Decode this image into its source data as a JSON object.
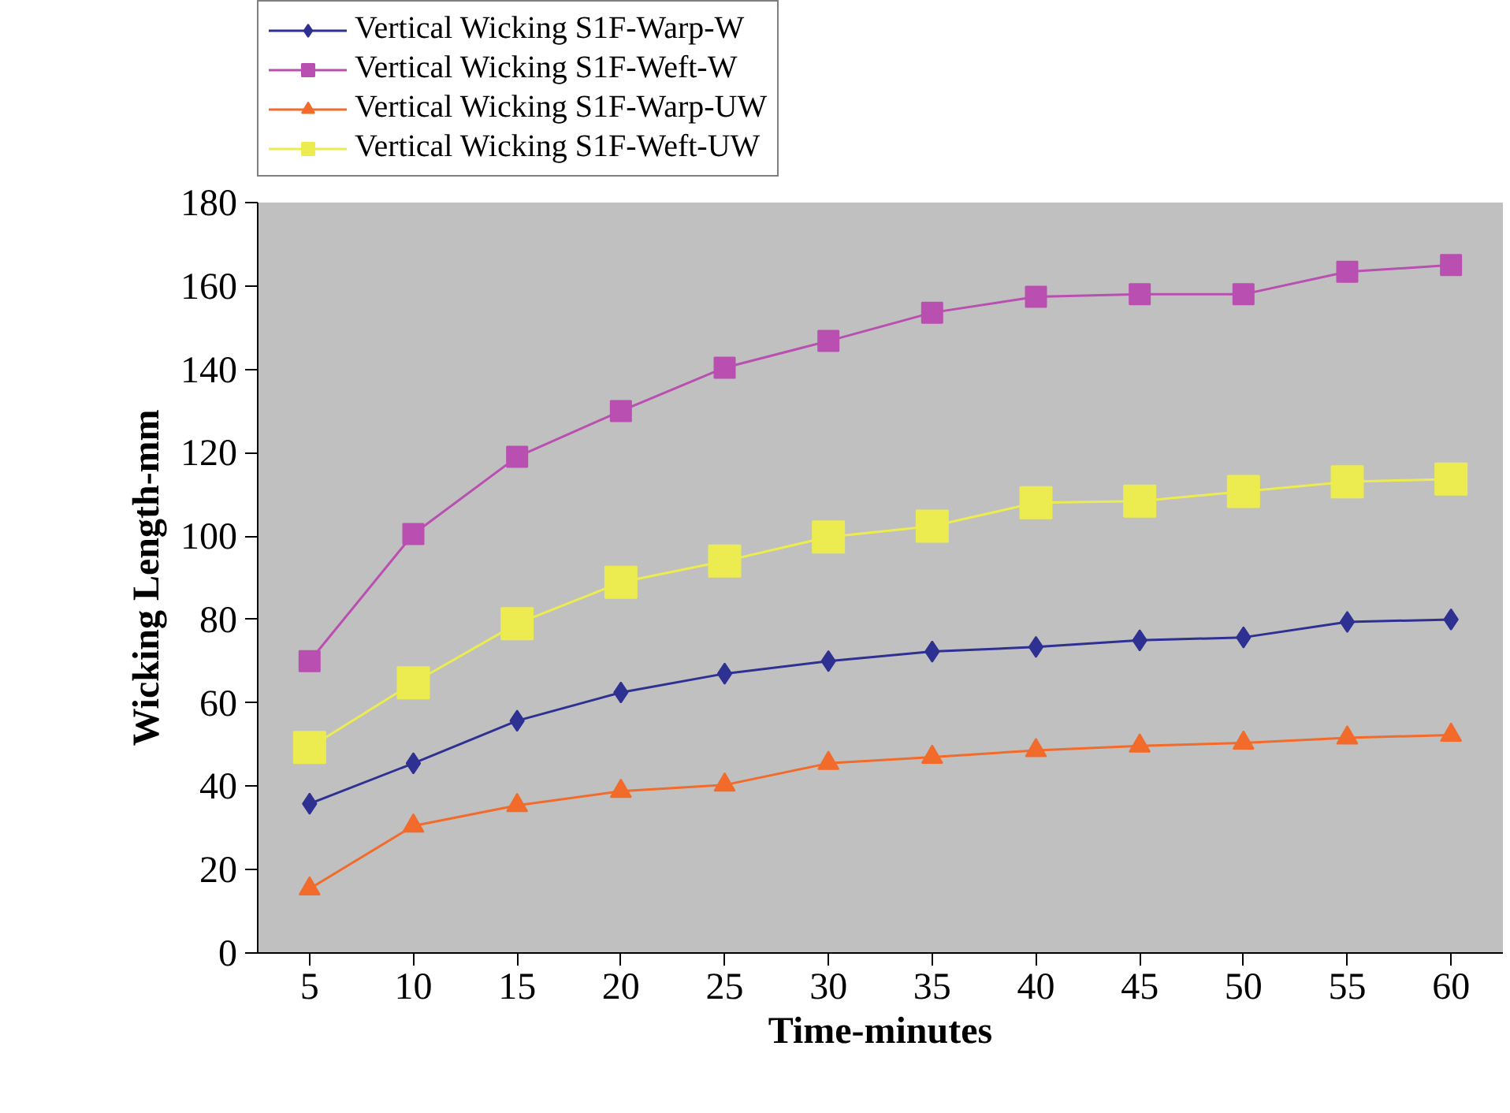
{
  "chart_data": {
    "type": "line",
    "xlabel": "Time-minutes",
    "ylabel": "Wicking Length-mm",
    "categories": [
      "5",
      "10",
      "15",
      "20",
      "25",
      "30",
      "35",
      "40",
      "45",
      "50",
      "55",
      "60"
    ],
    "ylim": [
      0,
      180
    ],
    "yticks": [
      0,
      20,
      40,
      60,
      80,
      100,
      120,
      140,
      160,
      180
    ],
    "grid": false,
    "legend": "top left",
    "series": [
      {
        "name": "Vertical Wicking S1F-Warp-W",
        "color": "#2e3192",
        "marker": "diamond",
        "values": [
          35.8,
          45.5,
          55.7,
          62.5,
          67,
          70,
          72.3,
          73.4,
          75,
          75.7,
          79.4,
          80
        ]
      },
      {
        "name": "Vertical Wicking S1F-Weft-W",
        "color": "#b94fb0",
        "marker": "square",
        "values": [
          70,
          100.5,
          119,
          130,
          140.4,
          146.8,
          153.6,
          157.4,
          158,
          158,
          163.4,
          165
        ]
      },
      {
        "name": "Vertical Wicking S1F-Warp-UW",
        "color": "#f26b2b",
        "marker": "triangle",
        "values": [
          15.4,
          30.5,
          35.4,
          38.8,
          40.3,
          45.5,
          47,
          48.6,
          49.7,
          50.4,
          51.6,
          52.3
        ]
      },
      {
        "name": "Vertical Wicking S1F-Weft-UW",
        "color": "#ecec50",
        "marker": "square",
        "values": [
          49.3,
          64.8,
          79,
          88.9,
          94,
          99.8,
          102.4,
          108,
          108.4,
          110.7,
          113,
          113.7
        ]
      }
    ]
  }
}
